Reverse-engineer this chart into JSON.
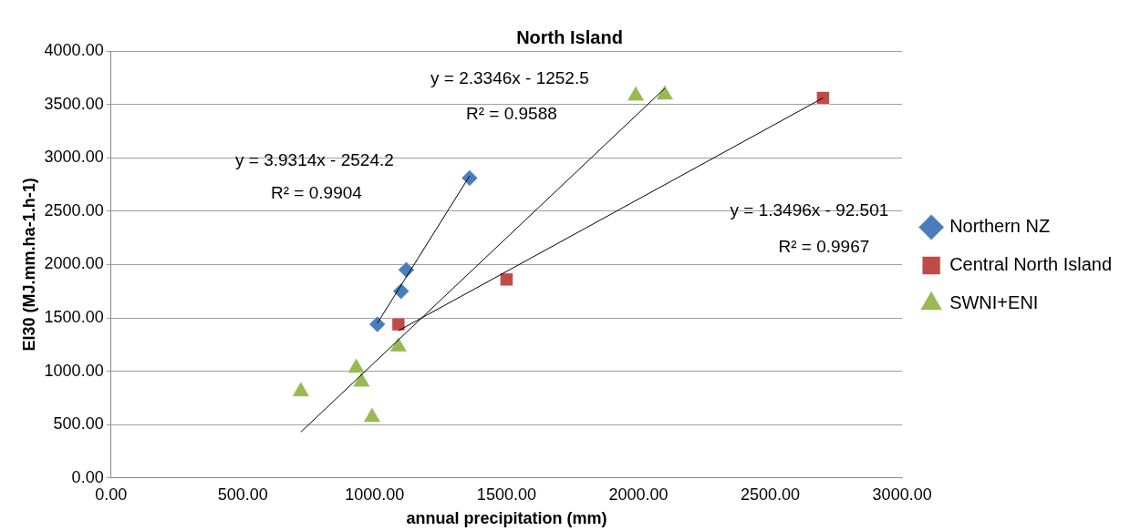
{
  "chart_data": {
    "type": "scatter",
    "title": "North Island",
    "xlabel": "annual precipitation (mm)",
    "ylabel": "EI30 (MJ.mm.ha-1.h-1)",
    "xlim": [
      0,
      3000
    ],
    "ylim": [
      0,
      4000
    ],
    "xticks": [
      {
        "value": 0,
        "label": "0.00"
      },
      {
        "value": 500,
        "label": "500.00"
      },
      {
        "value": 1000,
        "label": "1000.00"
      },
      {
        "value": 1500,
        "label": "1500.00"
      },
      {
        "value": 2000,
        "label": "2000.00"
      },
      {
        "value": 2500,
        "label": "2500.00"
      },
      {
        "value": 3000,
        "label": "3000.00"
      }
    ],
    "yticks": [
      {
        "value": 0,
        "label": "0.00"
      },
      {
        "value": 500,
        "label": "500.00"
      },
      {
        "value": 1000,
        "label": "1000.00"
      },
      {
        "value": 1500,
        "label": "1500.00"
      },
      {
        "value": 2000,
        "label": "2000.00"
      },
      {
        "value": 2500,
        "label": "2500.00"
      },
      {
        "value": 3000,
        "label": "3000.00"
      },
      {
        "value": 3500,
        "label": "3500.00"
      },
      {
        "value": 4000,
        "label": "4000.00"
      }
    ],
    "grid": "y",
    "legend": "right",
    "series": [
      {
        "name": "Northern NZ",
        "color": "#4a7ebb",
        "marker": "diamond",
        "x": [
          1010,
          1100,
          1120,
          1360
        ],
        "values": [
          1440,
          1750,
          1950,
          2810
        ]
      },
      {
        "name": "Central North Island",
        "color": "#be4b48",
        "marker": "square",
        "x": [
          1090,
          1500,
          2700
        ],
        "values": [
          1440,
          1860,
          3560
        ]
      },
      {
        "name": "SWNI+ENI",
        "color": "#98b954",
        "marker": "triangle",
        "x": [
          720,
          930,
          950,
          990,
          1090,
          1990,
          2100
        ],
        "values": [
          810,
          1030,
          900,
          570,
          1230,
          3580,
          3590
        ]
      },
      {
        "type": "line",
        "color": "#000000",
        "marker": "none",
        "x": [
          1010,
          1360
        ],
        "values": [
          1450,
          2830
        ]
      },
      {
        "type": "line",
        "color": "#000000",
        "marker": "none",
        "x": [
          1090,
          2700
        ],
        "values": [
          1380,
          3560
        ]
      },
      {
        "type": "line",
        "color": "#000000",
        "marker": "none",
        "x": [
          720,
          2100
        ],
        "values": [
          430,
          3650
        ]
      }
    ],
    "annotations": [
      "y = 3.9314x - 2524.2",
      "R² = 0.9904",
      "y = 2.3346x - 1252.5",
      "R² = 0.9588",
      "y = 1.3496x - 92.501",
      "R² = 0.9967"
    ]
  }
}
